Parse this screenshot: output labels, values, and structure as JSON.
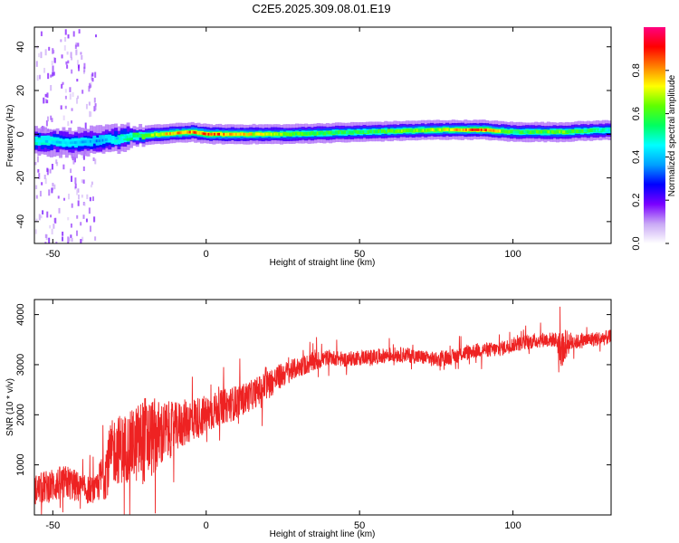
{
  "title": "C2E5.2025.309.08.01.E19",
  "colors": {
    "background": "#ffffff",
    "axis": "#000000",
    "snr_line": "#ee2222",
    "spectrogram_bg": "#ffffff"
  },
  "chart_data": [
    {
      "type": "heatmap",
      "name": "spectrogram",
      "title": "C2E5.2025.309.08.01.E19",
      "xlabel": "Height of straight line (km)",
      "ylabel": "Frequency (Hz)",
      "xlim": [
        -56,
        132
      ],
      "ylim": [
        -50,
        49
      ],
      "xticks": [
        -50,
        0,
        50,
        100
      ],
      "yticks": [
        -40,
        -20,
        0,
        20,
        40
      ],
      "colorbar": {
        "label": "Normalized spectral amplitude",
        "range": [
          0,
          1
        ],
        "ticks": [
          0.0,
          0.2,
          0.4,
          0.6,
          0.8
        ],
        "tick_labels": [
          "0.0",
          "0.2",
          "0.4",
          "0.6",
          "0.8"
        ],
        "colormap": [
          "#ffffff",
          "#c9a8f5",
          "#7a00ff",
          "#0000ff",
          "#00a0ff",
          "#00ffff",
          "#00ff60",
          "#60ff00",
          "#ffff00",
          "#ff8000",
          "#ff0000",
          "#ff0080"
        ]
      },
      "ridge": {
        "description_free_values": true,
        "height_km": [
          -56,
          -45,
          -35,
          -25,
          -15,
          -5,
          0,
          10,
          25,
          50,
          75,
          90,
          100,
          115,
          132
        ],
        "frequency_hz": [
          -3,
          -4,
          -3,
          -1,
          0,
          1,
          0,
          0,
          0,
          1,
          2,
          2,
          1,
          1,
          2
        ],
        "peak_amplitude": [
          0.5,
          0.45,
          0.4,
          0.55,
          0.8,
          0.9,
          0.95,
          0.85,
          0.7,
          0.6,
          0.75,
          0.95,
          0.6,
          0.7,
          0.5
        ]
      }
    },
    {
      "type": "line",
      "name": "snr",
      "xlabel": "Height of straight line (km)",
      "ylabel": "SNR (10 * v/v)",
      "xlim": [
        -56,
        132
      ],
      "ylim": [
        0,
        4300
      ],
      "xticks": [
        -50,
        0,
        50,
        100
      ],
      "yticks": [
        1000,
        2000,
        3000,
        4000
      ],
      "series": [
        {
          "name": "SNR",
          "color": "#ee2222",
          "x": [
            -56,
            -50,
            -45,
            -40,
            -36,
            -33,
            -30,
            -25,
            -20,
            -15,
            -10,
            -5,
            0,
            5,
            10,
            15,
            20,
            25,
            30,
            35,
            40,
            45,
            50,
            55,
            60,
            65,
            70,
            75,
            80,
            85,
            90,
            95,
            100,
            105,
            110,
            114,
            116,
            118,
            120,
            125,
            132
          ],
          "y": [
            500,
            600,
            650,
            500,
            500,
            900,
            1300,
            1350,
            1500,
            1600,
            1750,
            1900,
            2000,
            2150,
            2250,
            2400,
            2600,
            2800,
            2950,
            3050,
            3150,
            3100,
            3150,
            3150,
            3200,
            3200,
            3150,
            3100,
            3150,
            3250,
            3300,
            3300,
            3400,
            3450,
            3500,
            3500,
            3300,
            3450,
            3450,
            3500,
            3550
          ],
          "noise_amplitude": [
            300,
            350,
            350,
            300,
            250,
            600,
            700,
            700,
            900,
            700,
            500,
            450,
            400,
            350,
            350,
            300,
            300,
            250,
            200,
            200,
            150,
            150,
            150,
            150,
            150,
            150,
            150,
            150,
            150,
            150,
            150,
            150,
            150,
            150,
            150,
            150,
            400,
            250,
            150,
            150,
            150
          ]
        }
      ]
    }
  ]
}
